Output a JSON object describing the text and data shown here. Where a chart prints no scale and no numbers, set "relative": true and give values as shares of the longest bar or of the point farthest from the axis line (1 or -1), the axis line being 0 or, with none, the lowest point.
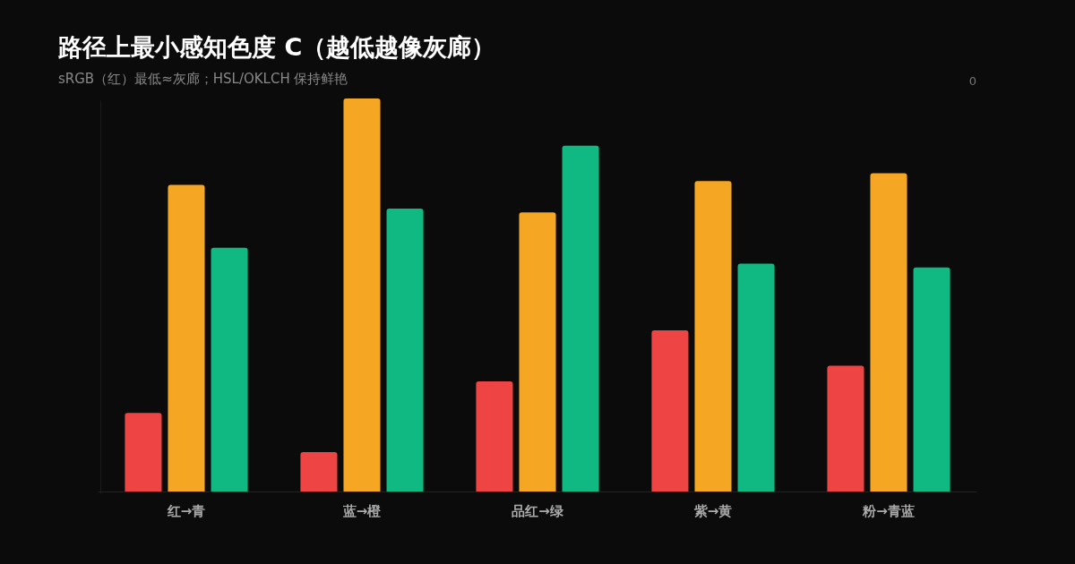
{
  "chart_data": {
    "type": "bar",
    "title": "路径上最小感知色度 C（越低越像灰廊）",
    "subtitle": "sRGB（红）最低≈灰廊；HSL/OKLCH 保持鲜艳",
    "categories": [
      "红→青",
      "蓝→橙",
      "品红→绿",
      "紫→黄",
      "粉→青蓝"
    ],
    "relative": true,
    "series": [
      {
        "color": "#ef4444",
        "values": [
          0.2,
          0.1,
          0.28,
          0.41,
          0.32
        ]
      },
      {
        "color": "#f5a623",
        "values": [
          0.78,
          1,
          0.71,
          0.79,
          0.81
        ]
      },
      {
        "color": "#10b981",
        "values": [
          0.62,
          0.72,
          0.88,
          0.58,
          0.57
        ]
      }
    ],
    "annotations": [
      "0"
    ]
  }
}
